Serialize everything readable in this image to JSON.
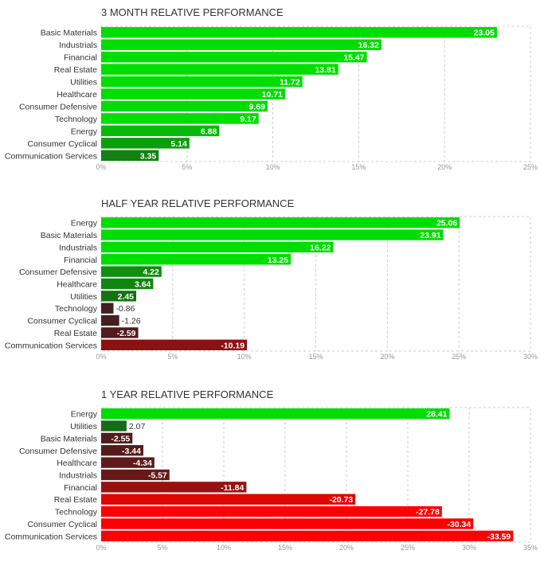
{
  "chart_data": [
    {
      "type": "bar",
      "orientation": "horizontal",
      "title": "3 MONTH RELATIVE PERFORMANCE",
      "categories": [
        "Basic Materials",
        "Industrials",
        "Financial",
        "Real Estate",
        "Utilities",
        "Healthcare",
        "Consumer Defensive",
        "Technology",
        "Energy",
        "Consumer Cyclical",
        "Communication Services"
      ],
      "values": [
        23.05,
        16.32,
        15.47,
        13.81,
        11.72,
        10.71,
        9.69,
        9.17,
        6.88,
        5.14,
        3.35
      ],
      "value_labels": [
        "23.05",
        "16.32",
        "15.47",
        "13.81",
        "11.72",
        "10.71",
        "9.69",
        "9.17",
        "6.88",
        "5.14",
        "3.35"
      ],
      "xlim": [
        0,
        25
      ],
      "xticks": [
        "0%",
        "5%",
        "10%",
        "15%",
        "20%",
        "25%"
      ],
      "grid": true
    },
    {
      "type": "bar",
      "orientation": "horizontal",
      "title": "HALF YEAR RELATIVE PERFORMANCE",
      "categories": [
        "Energy",
        "Basic Materials",
        "Industrials",
        "Financial",
        "Consumer Defensive",
        "Healthcare",
        "Utilities",
        "Technology",
        "Consumer Cyclical",
        "Real Estate",
        "Communication Services"
      ],
      "values": [
        25.06,
        23.91,
        16.22,
        13.25,
        4.22,
        3.64,
        2.45,
        -0.86,
        -1.26,
        -2.59,
        -10.19
      ],
      "value_labels": [
        "25.06",
        "23.91",
        "16.22",
        "13.25",
        "4.22",
        "3.64",
        "2.45",
        "-0.86",
        "-1.26",
        "-2.59",
        "-10.19"
      ],
      "xlim": [
        0,
        30
      ],
      "xticks": [
        "0%",
        "5%",
        "10%",
        "15%",
        "20%",
        "25%",
        "30%"
      ],
      "grid": true
    },
    {
      "type": "bar",
      "orientation": "horizontal",
      "title": "1 YEAR RELATIVE PERFORMANCE",
      "categories": [
        "Energy",
        "Utilities",
        "Basic Materials",
        "Consumer Defensive",
        "Healthcare",
        "Industrials",
        "Financial",
        "Real Estate",
        "Technology",
        "Consumer Cyclical",
        "Communication Services"
      ],
      "values": [
        28.41,
        2.07,
        -2.55,
        -3.44,
        -4.34,
        -5.57,
        -11.84,
        -20.73,
        -27.78,
        -30.34,
        -33.59
      ],
      "value_labels": [
        "28.41",
        "2.07",
        "-2.55",
        "-3.44",
        "-4.34",
        "-5.57",
        "-11.84",
        "-20.73",
        "-27.78",
        "-30.34",
        "-33.59"
      ],
      "xlim": [
        0,
        35
      ],
      "xticks": [
        "0%",
        "5%",
        "10%",
        "15%",
        "20%",
        "25%",
        "30%",
        "35%"
      ],
      "grid": true
    }
  ],
  "colors": {
    "title": "#333333",
    "label": "#333333",
    "tick": "#999999",
    "grid": "#cccccc",
    "pos_strong": "#00dd00",
    "pos_dark": "#1c4a1c",
    "neg_dark": "#3d1f1f",
    "neg_strong": "#ff0000"
  }
}
